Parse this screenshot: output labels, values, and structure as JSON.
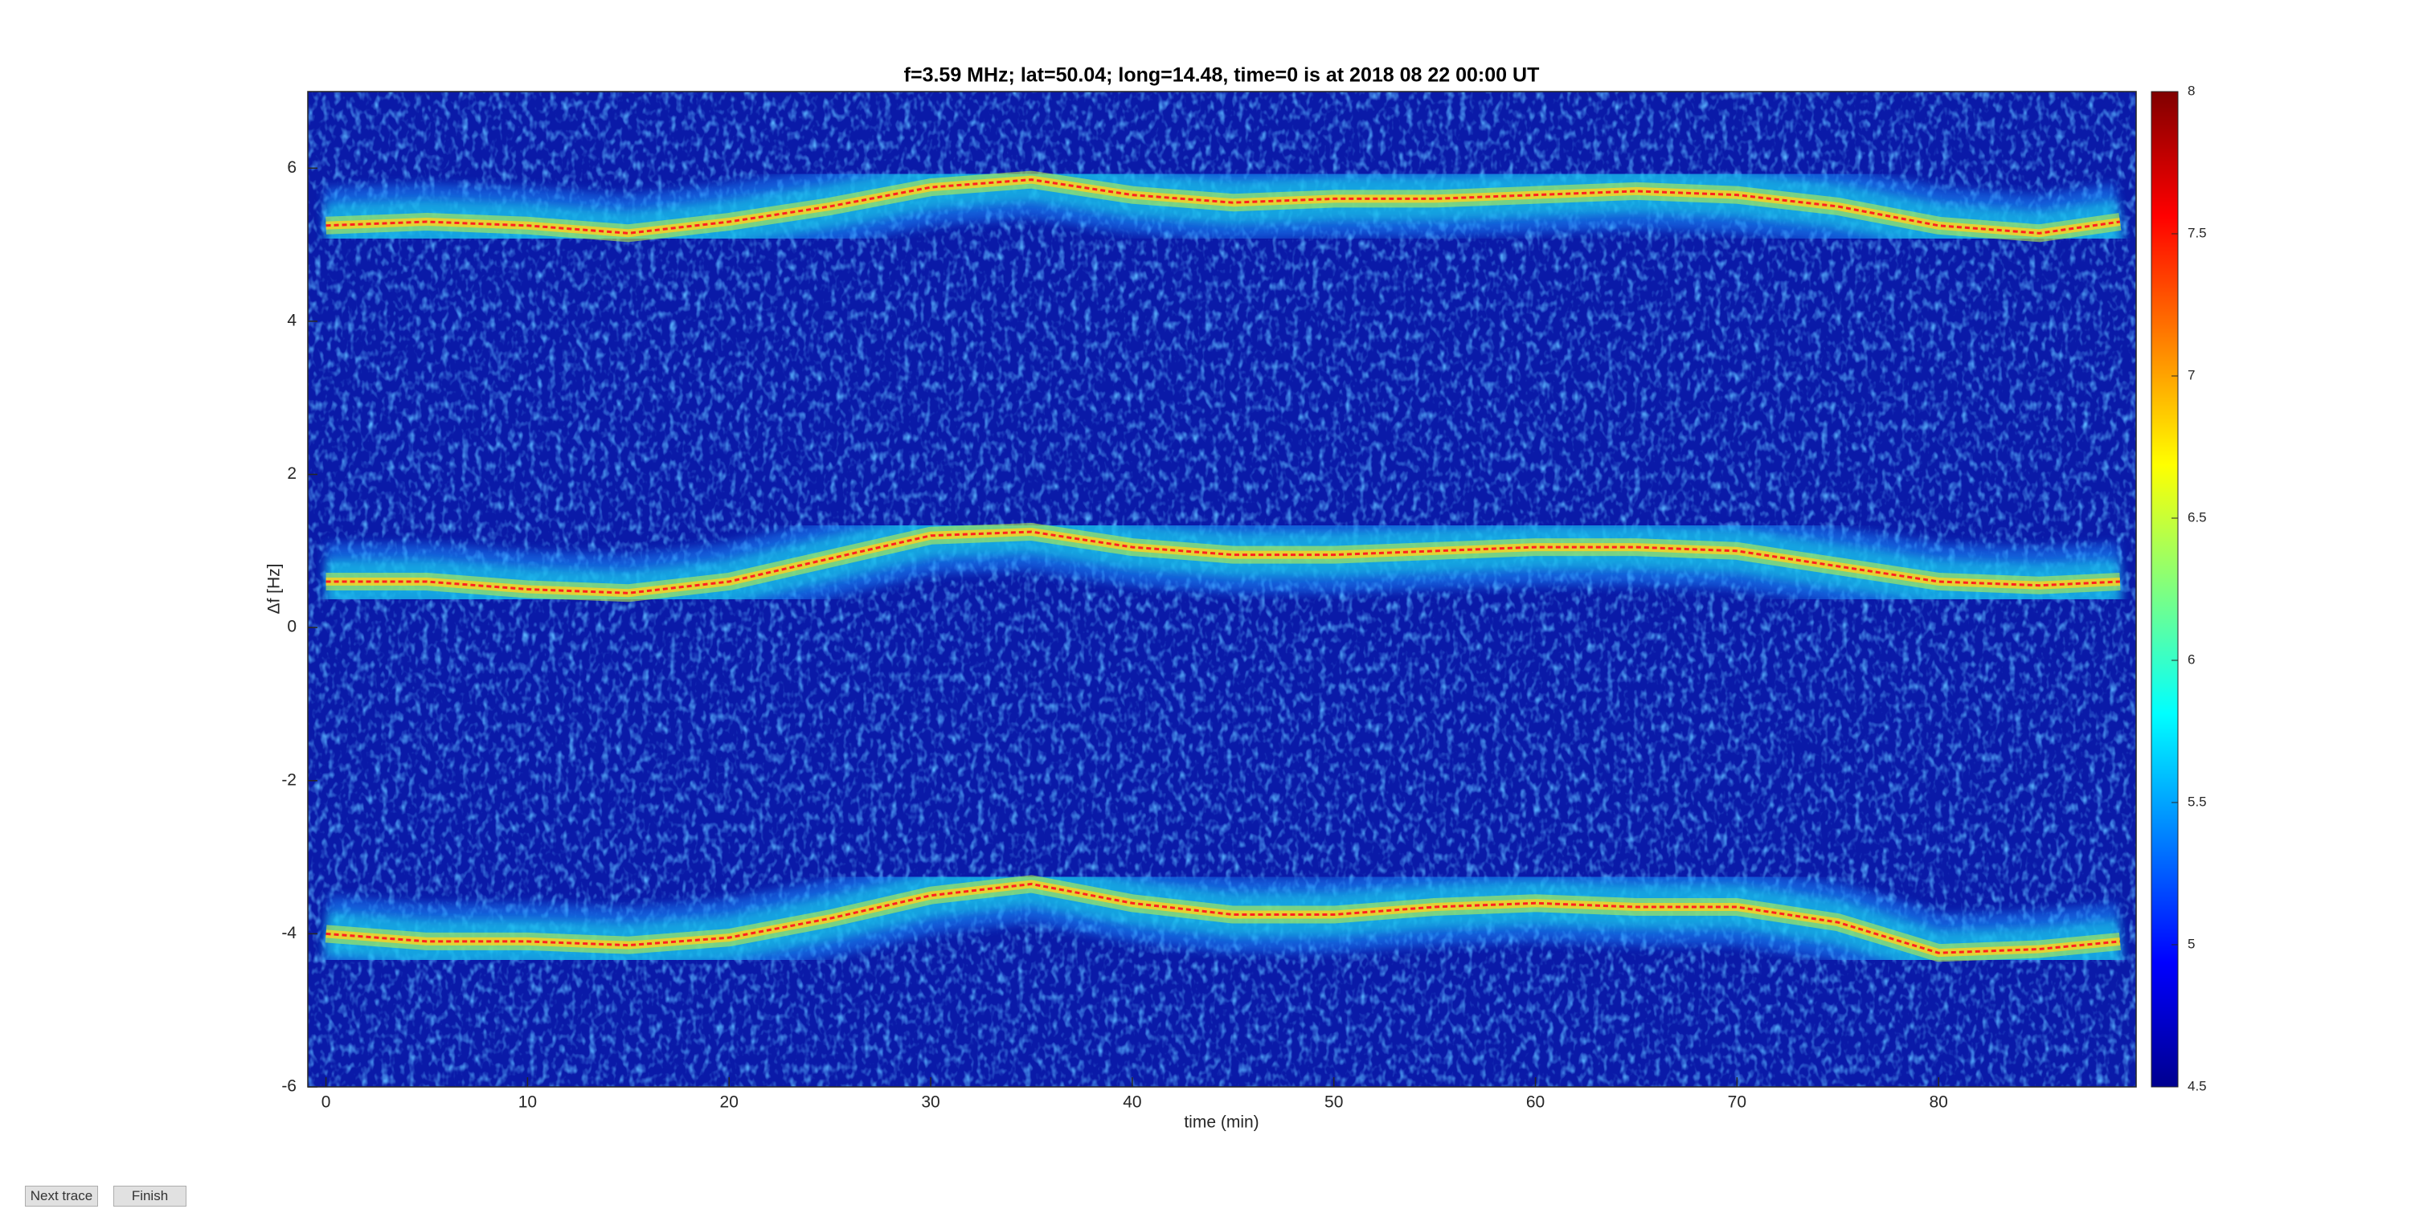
{
  "chart_data": {
    "type": "spectrogram",
    "title": "f=3.59 MHz;  lat=50.04; long=14.48, time=0 is at 2018 08 22 00:00 UT",
    "xlabel": "time (min)",
    "ylabel": "Δf [Hz]",
    "xlim": [
      -0.9,
      89.8
    ],
    "xticks": [
      0,
      10,
      20,
      30,
      40,
      50,
      60,
      70,
      80
    ],
    "ylim": [
      -6,
      7
    ],
    "yticks": [
      -6,
      -4,
      -2,
      0,
      2,
      4,
      6
    ],
    "clim": [
      4.5,
      8
    ],
    "cticks": [
      4.5,
      5,
      5.5,
      6,
      6.5,
      7,
      7.5,
      8
    ],
    "x": [
      0,
      5,
      10,
      15,
      20,
      25,
      30,
      35,
      40,
      45,
      50,
      55,
      60,
      65,
      70,
      75,
      80,
      85,
      89
    ],
    "series": [
      {
        "color": "#ff2020",
        "values": [
          5.25,
          5.3,
          5.25,
          5.15,
          5.3,
          5.5,
          5.75,
          5.85,
          5.65,
          5.55,
          5.6,
          5.6,
          5.65,
          5.7,
          5.65,
          5.5,
          5.25,
          5.15,
          5.3
        ]
      },
      {
        "color": "#ff2020",
        "values": [
          0.6,
          0.6,
          0.5,
          0.45,
          0.6,
          0.9,
          1.2,
          1.25,
          1.05,
          0.95,
          0.95,
          1.0,
          1.05,
          1.05,
          1.0,
          0.8,
          0.6,
          0.55,
          0.6
        ]
      },
      {
        "color": "#ff2020",
        "values": [
          -4.0,
          -4.1,
          -4.1,
          -4.15,
          -4.05,
          -3.8,
          -3.5,
          -3.35,
          -3.6,
          -3.75,
          -3.75,
          -3.65,
          -3.6,
          -3.65,
          -3.65,
          -3.85,
          -4.25,
          -4.2,
          -4.1
        ]
      }
    ]
  },
  "ui": {
    "buttons": [
      "Next trace",
      "Finish"
    ]
  }
}
